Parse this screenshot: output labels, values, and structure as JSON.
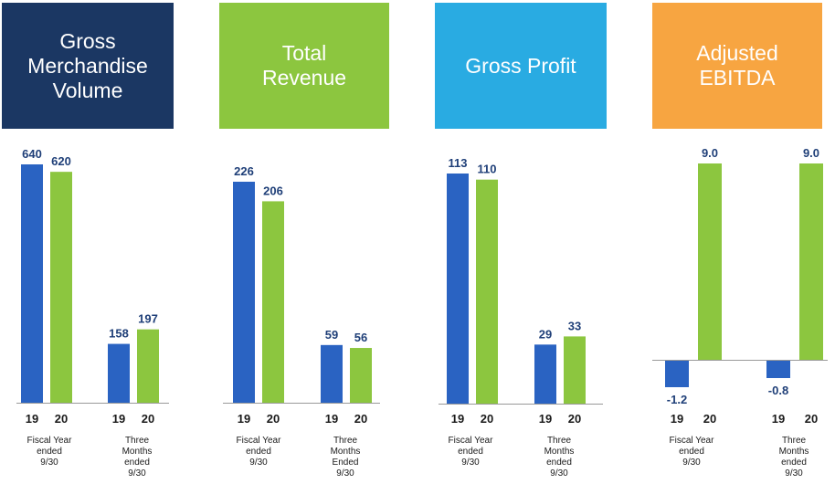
{
  "colors": {
    "series_2019": "#2a63c2",
    "series_2020": "#8cc63f",
    "header_gmv": "#1b3763",
    "header_revenue": "#8cc63f",
    "header_profit": "#29abe2",
    "header_ebitda": "#f7a541",
    "axis": "#999999"
  },
  "chart_data": [
    {
      "type": "bar",
      "title": "Gross Merchandise Volume",
      "categories": [
        "Fiscal Year ended 9/30",
        "Three Months ended 9/30"
      ],
      "series": [
        {
          "name": "19",
          "values": [
            640,
            158
          ]
        },
        {
          "name": "20",
          "values": [
            620,
            197
          ]
        }
      ],
      "value_labels": [
        [
          "640",
          "158"
        ],
        [
          "620",
          "197"
        ]
      ],
      "ylim": [
        0,
        640
      ]
    },
    {
      "type": "bar",
      "title": "Total Revenue",
      "categories": [
        "Fiscal Year ended 9/30",
        "Three Months Ended 9/30"
      ],
      "series": [
        {
          "name": "19",
          "values": [
            226,
            59
          ]
        },
        {
          "name": "20",
          "values": [
            206,
            56
          ]
        }
      ],
      "value_labels": [
        [
          "226",
          "59"
        ],
        [
          "206",
          "56"
        ]
      ],
      "ylim": [
        0,
        226
      ]
    },
    {
      "type": "bar",
      "title": "Gross Profit",
      "categories": [
        "Fiscal Year ended 9/30",
        "Three Months ended 9/30"
      ],
      "series": [
        {
          "name": "19",
          "values": [
            113,
            29
          ]
        },
        {
          "name": "20",
          "values": [
            110,
            33
          ]
        }
      ],
      "value_labels": [
        [
          "113",
          "29"
        ],
        [
          "110",
          "33"
        ]
      ],
      "ylim": [
        0,
        113
      ]
    },
    {
      "type": "bar",
      "title": "Adjusted EBITDA",
      "categories": [
        "Fiscal Year ended 9/30",
        "Three Months ended 9/30"
      ],
      "series": [
        {
          "name": "19",
          "values": [
            -1.2,
            -0.8
          ]
        },
        {
          "name": "20",
          "values": [
            9.0,
            9.0
          ]
        }
      ],
      "value_labels": [
        [
          "-1.2",
          "-0.8"
        ],
        [
          "9.0",
          "9.0"
        ]
      ],
      "ylim": [
        -1.2,
        9.0
      ]
    }
  ],
  "panels": [
    {
      "header_lines": [
        "Gross",
        "Merchandise",
        "Volume"
      ],
      "cat_lines": [
        [
          "Fiscal Year",
          "ended",
          "9/30"
        ],
        [
          "Three",
          "Months",
          "ended",
          "9/30"
        ]
      ]
    },
    {
      "header_lines": [
        "Total",
        "Revenue"
      ],
      "cat_lines": [
        [
          "Fiscal Year",
          "ended",
          "9/30"
        ],
        [
          "Three",
          "Months",
          "Ended",
          "9/30"
        ]
      ]
    },
    {
      "header_lines": [
        "Gross Profit"
      ],
      "cat_lines": [
        [
          "Fiscal Year",
          "ended",
          "9/30"
        ],
        [
          "Three",
          "Months",
          "ended",
          "9/30"
        ]
      ]
    },
    {
      "header_lines": [
        "Adjusted",
        "EBITDA"
      ],
      "cat_lines": [
        [
          "Fiscal Year",
          "ended",
          "9/30"
        ],
        [
          "Three",
          "Months",
          "ended",
          "9/30"
        ]
      ]
    }
  ]
}
